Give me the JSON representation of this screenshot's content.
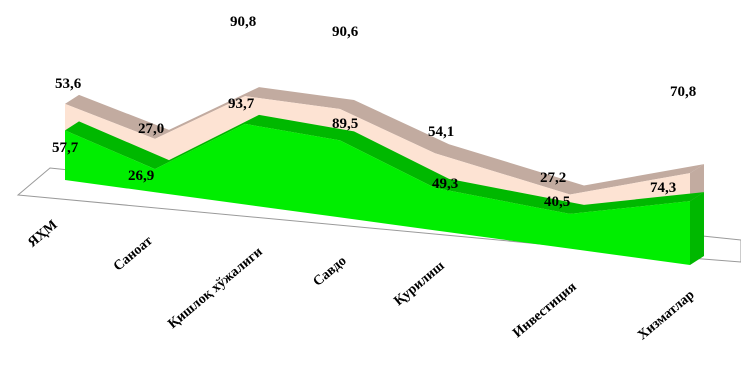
{
  "chart_data": {
    "type": "area",
    "title": "",
    "xlabel": "",
    "ylabel": "",
    "categories": [
      "ЯҲМ",
      "Саноат",
      "Қишлоқ хўжалиги",
      "Савдо",
      "Қурилиш",
      "Инвестиция",
      "Хизматлар"
    ],
    "series": [
      {
        "values": [
          53.6,
          27.0,
          90.8,
          90.6,
          54.1,
          27.2,
          70.8
        ],
        "labels": [
          "53,6",
          "27,0",
          "90,8",
          "90,6",
          "54,1",
          "27,2",
          "70,8"
        ],
        "color": "#fde3d3",
        "top_color": "#c2aba0"
      },
      {
        "values": [
          57.7,
          26.9,
          93.7,
          89.5,
          49.3,
          40.5,
          74.3
        ],
        "labels": [
          "57,7",
          "26,9",
          "93,7",
          "89,5",
          "49,3",
          "40,5",
          "74,3"
        ],
        "color": "#00ee00",
        "top_color": "#00b800"
      }
    ],
    "ylim": [
      0,
      100
    ],
    "grid": false,
    "legend": "none",
    "style": "3d"
  }
}
